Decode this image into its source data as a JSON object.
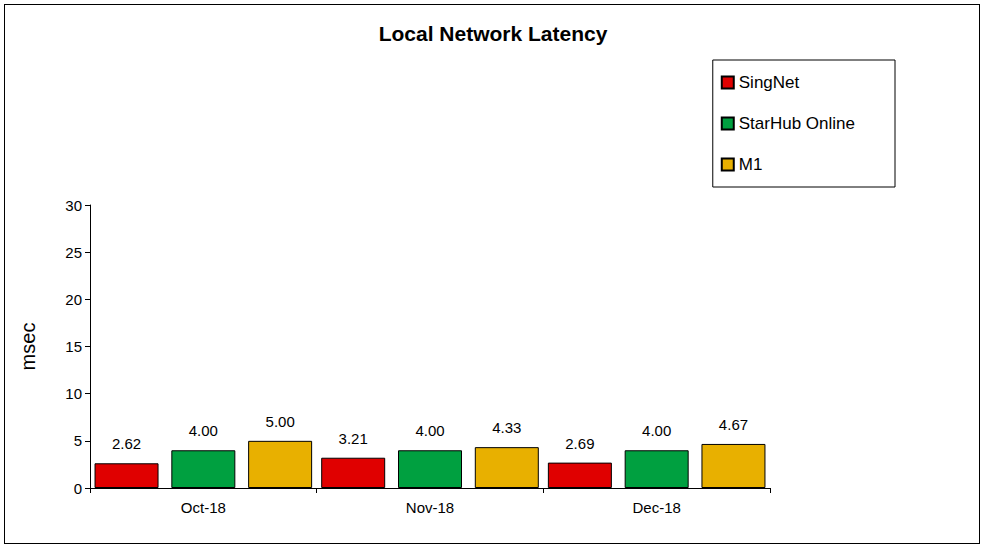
{
  "chart_data": {
    "type": "bar",
    "title": "Local Network Latency",
    "y_label": "msec",
    "categories": [
      "Oct-18",
      "Nov-18",
      "Dec-18"
    ],
    "series": [
      {
        "name": "SingNet",
        "color": "#e00000",
        "values": [
          2.62,
          3.21,
          2.69
        ],
        "value_labels": [
          "2.62",
          "3.21",
          "2.69"
        ]
      },
      {
        "name": "StarHub Online",
        "color": "#00a040",
        "values": [
          4,
          4,
          4
        ],
        "value_labels": [
          "4.00",
          "4.00",
          "4.00"
        ]
      },
      {
        "name": "M1",
        "color": "#e8b000",
        "values": [
          5,
          4.33,
          4.67
        ],
        "value_labels": [
          "5.00",
          "4.33",
          "4.67"
        ]
      }
    ],
    "ylim": [
      0,
      30
    ],
    "yticks": [
      0,
      5,
      10,
      15,
      20,
      25,
      30
    ],
    "grid": false,
    "legend": "upper right",
    "data_labels": true
  }
}
